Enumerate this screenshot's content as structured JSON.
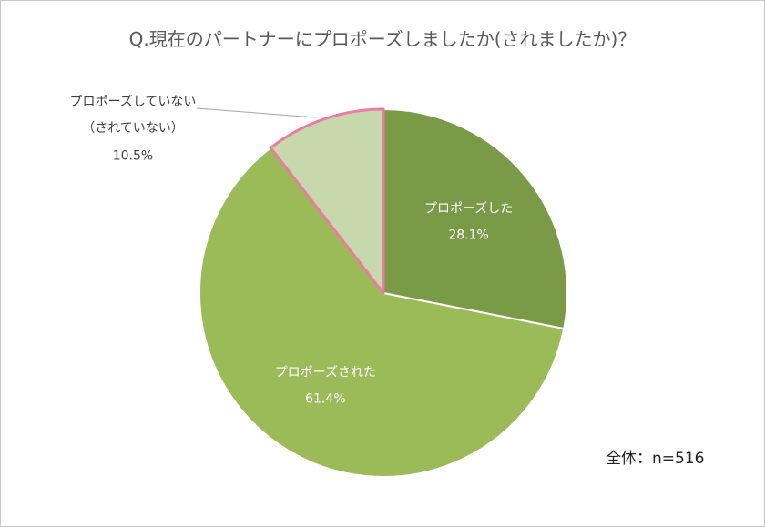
{
  "chart_data": {
    "type": "pie",
    "title": "Q.現在のパートナーにプロポーズしましたか(されましたか)？",
    "categories": [
      "プロポーズした",
      "プロポーズされた",
      "プロポーズしていない\n（されていない）"
    ],
    "values": [
      28.1,
      61.4,
      10.5
    ],
    "value_labels": [
      "28.1%",
      "61.4%",
      "10.5%"
    ],
    "colors": [
      "#7a9a48",
      "#9bbb59",
      "#c8d8ad"
    ],
    "annotation": "全体：n=516"
  }
}
